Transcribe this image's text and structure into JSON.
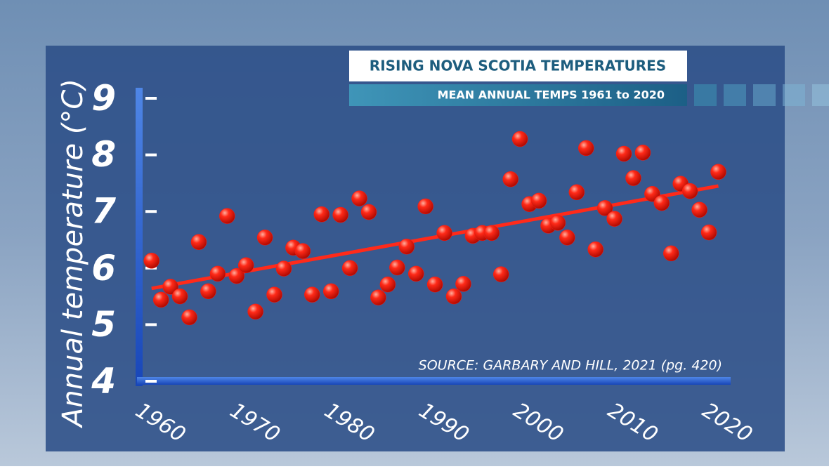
{
  "chart_data": {
    "type": "scatter",
    "title": "RISING NOVA SCOTIA TEMPERATURES",
    "subtitle": "MEAN ANNUAL TEMPS 1961 to 2020",
    "y_label": "Annual temperature (°C)",
    "source": "SOURCE: GARBARY AND HILL, 2021 (pg. 420)",
    "x": [
      1960,
      1961,
      1962,
      1963,
      1964,
      1965,
      1966,
      1967,
      1968,
      1969,
      1970,
      1971,
      1972,
      1973,
      1974,
      1975,
      1976,
      1977,
      1978,
      1979,
      1980,
      1981,
      1982,
      1983,
      1984,
      1985,
      1986,
      1987,
      1988,
      1989,
      1990,
      1991,
      1992,
      1993,
      1994,
      1995,
      1996,
      1997,
      1998,
      1999,
      2000,
      2001,
      2002,
      2003,
      2004,
      2005,
      2006,
      2007,
      2008,
      2009,
      2010,
      2011,
      2012,
      2013,
      2014,
      2015,
      2016,
      2017,
      2018,
      2019,
      2020
    ],
    "series": [
      {
        "name": "Annual temperature",
        "color": "#ff1a10",
        "values": [
          6.13,
          5.44,
          5.67,
          5.5,
          5.13,
          6.46,
          5.59,
          5.9,
          6.92,
          5.86,
          6.05,
          5.23,
          6.54,
          5.53,
          5.99,
          6.36,
          6.3,
          5.53,
          6.95,
          5.59,
          6.94,
          6.0,
          7.23,
          6.99,
          5.48,
          5.71,
          6.01,
          6.38,
          5.9,
          7.09,
          5.71,
          6.62,
          5.5,
          5.72,
          6.57,
          6.62,
          6.62,
          5.89,
          7.57,
          8.28,
          7.13,
          7.19,
          6.75,
          6.8,
          6.54,
          7.34,
          8.12,
          6.33,
          7.06,
          6.87,
          8.02,
          7.59,
          8.04,
          7.31,
          7.15,
          6.26,
          7.49,
          7.36,
          7.03,
          6.63,
          7.7
        ]
      }
    ],
    "trendline": {
      "x": [
        1960,
        2020
      ],
      "values": [
        5.64,
        7.45
      ],
      "color": "#ff2a1a"
    },
    "xlim": [
      1959.2,
      2021.3
    ],
    "ylim": [
      4,
      9
    ],
    "xticks": [
      1960,
      1970,
      1980,
      1990,
      2000,
      2010,
      2020
    ],
    "yticks": [
      4,
      5,
      6,
      7,
      8,
      9
    ]
  }
}
